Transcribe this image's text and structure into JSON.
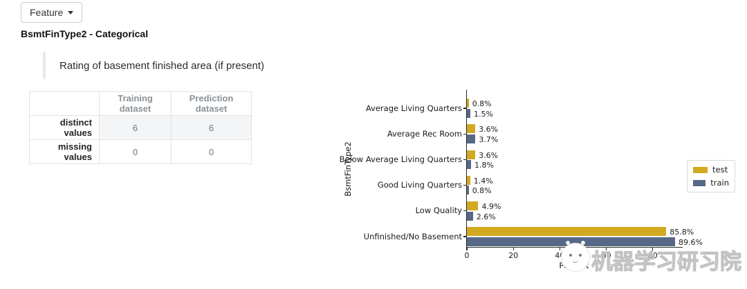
{
  "toolbar": {
    "feature_button_label": "Feature"
  },
  "header": {
    "title": "BsmtFinType2 - Categorical",
    "description": "Rating of basement finished area (if present)"
  },
  "summary_table": {
    "columns": [
      "",
      "Training dataset",
      "Prediction dataset"
    ],
    "rows": [
      {
        "label": "distinct values",
        "values": [
          "6",
          "6"
        ]
      },
      {
        "label": "missing values",
        "values": [
          "0",
          "0"
        ]
      }
    ]
  },
  "chart_data": {
    "type": "bar",
    "orientation": "horizontal",
    "title": "",
    "xlabel": "Percent",
    "ylabel": "BsmtFinType2",
    "xlim": [
      0,
      93
    ],
    "xticks": [
      "0",
      "20",
      "40",
      "60",
      "80"
    ],
    "grid": false,
    "legend_position": "right-outside",
    "categories": [
      "Average Living Quarters",
      "Average Rec Room",
      "Below Average Living Quarters",
      "Good Living Quarters",
      "Low Quality",
      "Unfinished/No Basement"
    ],
    "series": [
      {
        "name": "test",
        "color": "#d3a920",
        "values": [
          0.8,
          3.6,
          3.6,
          1.4,
          4.9,
          85.8
        ],
        "labels": [
          "0.8%",
          "3.6%",
          "3.6%",
          "1.4%",
          "4.9%",
          "85.8%"
        ]
      },
      {
        "name": "train",
        "color": "#566886",
        "values": [
          1.5,
          3.7,
          1.8,
          0.8,
          2.6,
          89.6
        ],
        "labels": [
          "1.5%",
          "3.7%",
          "1.8%",
          "0.8%",
          "2.6%",
          "89.6%"
        ]
      }
    ]
  },
  "watermark": {
    "icon": "cat-face-logo",
    "text": "机器学习研习院"
  }
}
